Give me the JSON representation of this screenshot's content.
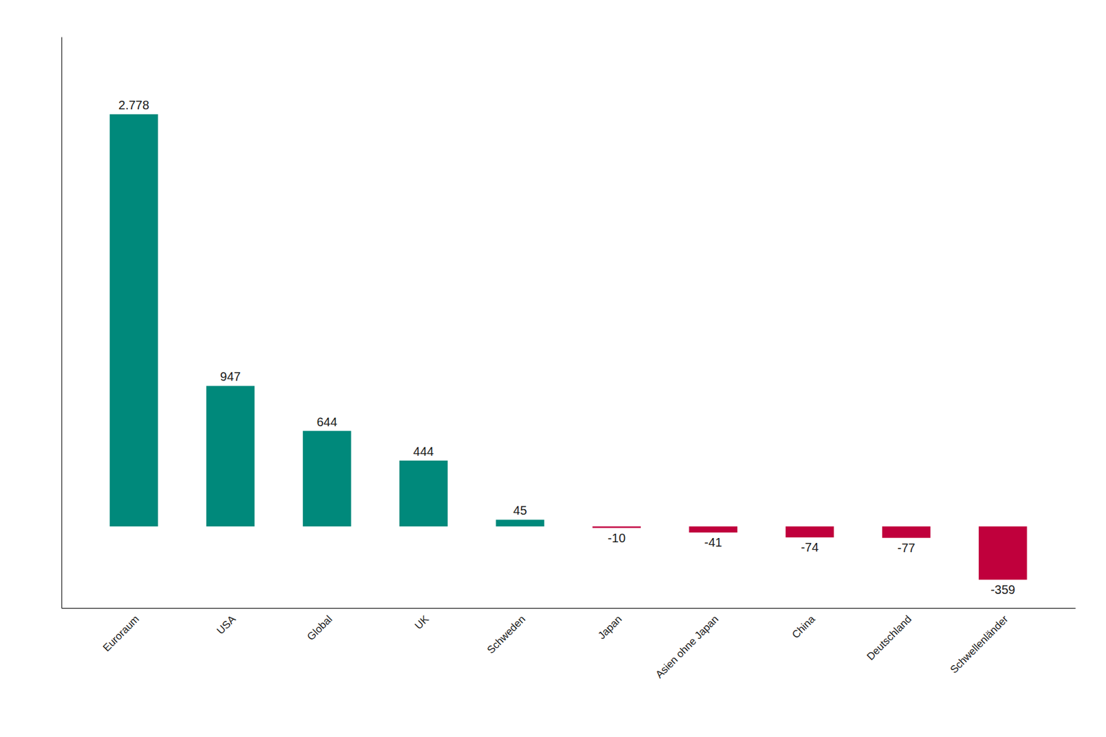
{
  "chart_data": {
    "type": "bar",
    "categories": [
      "Euroraum",
      "USA",
      "Global",
      "UK",
      "Schweden",
      "Japan",
      "Asien ohne Japan",
      "China",
      "Deutschland",
      "Schwellenländer"
    ],
    "values": [
      2778,
      947,
      644,
      444,
      45,
      -10,
      -41,
      -74,
      -77,
      -359
    ],
    "value_labels": [
      "2.778",
      "947",
      "644",
      "444",
      "45",
      "-10",
      "-41",
      "-74",
      "-77",
      "-359"
    ],
    "colors": [
      "#00897b",
      "#00897b",
      "#00897b",
      "#00897b",
      "#00897b",
      "#c0003c",
      "#c0003c",
      "#c0003c",
      "#c0003c",
      "#c0003c"
    ],
    "ylim": [
      -550,
      3300
    ],
    "data_labels": true,
    "tick_labels": "x",
    "grid": false
  }
}
